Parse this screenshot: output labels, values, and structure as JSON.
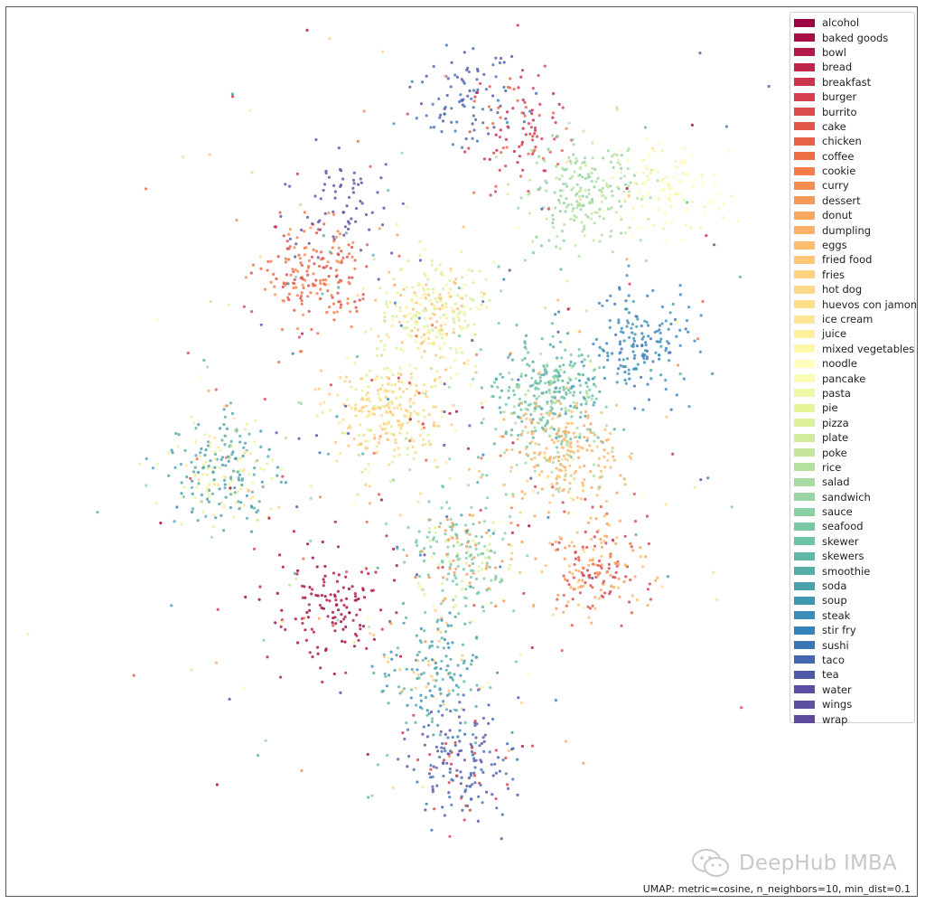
{
  "chart_data": {
    "type": "scatter",
    "title": "",
    "caption": "UMAP: metric=cosine, n_neighbors=10, min_dist=0.1",
    "grid": false,
    "legend_position": "top-right",
    "categories": [
      "alcohol",
      "baked goods",
      "bowl",
      "bread",
      "breakfast",
      "burger",
      "burrito",
      "cake",
      "chicken",
      "coffee",
      "cookie",
      "curry",
      "dessert",
      "donut",
      "dumpling",
      "eggs",
      "fried food",
      "fries",
      "hot dog",
      "huevos con jamon",
      "ice cream",
      "juice",
      "mixed vegetables",
      "noodle",
      "pancake",
      "pasta",
      "pie",
      "pizza",
      "plate",
      "poke",
      "rice",
      "salad",
      "sandwich",
      "sauce",
      "seafood",
      "skewer",
      "skewers",
      "smoothie",
      "soda",
      "soup",
      "steak",
      "stir fry",
      "sushi",
      "taco",
      "tea",
      "water",
      "wings",
      "wrap"
    ],
    "colors": [
      "#9e0142",
      "#a80d45",
      "#b41947",
      "#c0264a",
      "#cc334c",
      "#d53e4f",
      "#db4a4c",
      "#e15649",
      "#e76246",
      "#ed6e43",
      "#f47d4a",
      "#f68c50",
      "#f89a57",
      "#faa85e",
      "#fcb266",
      "#fdbd6f",
      "#fdc777",
      "#fdd281",
      "#fed98a",
      "#fee08b",
      "#fee695",
      "#fff0a0",
      "#fff7aa",
      "#ffffbf",
      "#f8fcb4",
      "#eff8a6",
      "#e6f598",
      "#dcf09a",
      "#d2ec9b",
      "#c5e69c",
      "#b6e0a0",
      "#a8dba4",
      "#99d5a4",
      "#8bcfa4",
      "#7cc8a5",
      "#6ec3a5",
      "#62b8a7",
      "#56adaa",
      "#4aa2ad",
      "#3f97b0",
      "#3a8cb9",
      "#3682ba",
      "#3d74b4",
      "#4566ae",
      "#4e59a8",
      "#5b4ea2",
      "#5e4fa2",
      "#5d4a9e"
    ],
    "clusters": [
      {
        "cx": 0.12,
        "cy": 0.86,
        "n": 90,
        "cats": [
          "tea",
          "taco",
          "sushi",
          "water"
        ]
      },
      {
        "cx": 0.31,
        "cy": 0.78,
        "n": 90,
        "cats": [
          "burger",
          "breakfast",
          "bread",
          "chicken"
        ]
      },
      {
        "cx": 0.52,
        "cy": 0.62,
        "n": 220,
        "cats": [
          "salad",
          "sandwich",
          "sauce",
          "rice",
          "poke"
        ]
      },
      {
        "cx": 0.78,
        "cy": 0.62,
        "n": 110,
        "cats": [
          "juice",
          "mixed vegetables",
          "pancake",
          "pasta",
          "noodle"
        ]
      },
      {
        "cx": -0.3,
        "cy": 0.6,
        "n": 70,
        "cats": [
          "wrap",
          "wings",
          "water"
        ]
      },
      {
        "cx": -0.4,
        "cy": 0.4,
        "n": 180,
        "cats": [
          "coffee",
          "cookie",
          "chicken",
          "curry",
          "burrito"
        ]
      },
      {
        "cx": 0.0,
        "cy": 0.3,
        "n": 260,
        "cats": [
          "pie",
          "pizza",
          "plate",
          "ice cream",
          "juice",
          "eggs"
        ]
      },
      {
        "cx": 0.7,
        "cy": 0.22,
        "n": 170,
        "cats": [
          "steak",
          "stir fry",
          "sushi",
          "soup"
        ]
      },
      {
        "cx": 0.4,
        "cy": 0.1,
        "n": 300,
        "cats": [
          "seafood",
          "skewer",
          "skewers",
          "smoothie",
          "soda",
          "salad"
        ]
      },
      {
        "cx": -0.15,
        "cy": 0.05,
        "n": 240,
        "cats": [
          "fried food",
          "fries",
          "hot dog",
          "huevos con jamon",
          "pizza"
        ]
      },
      {
        "cx": -0.7,
        "cy": -0.1,
        "n": 230,
        "cats": [
          "smoothie",
          "soda",
          "soup",
          "pie",
          "ice cream"
        ]
      },
      {
        "cx": 0.45,
        "cy": -0.05,
        "n": 230,
        "cats": [
          "dumpling",
          "eggs",
          "donut",
          "fried food",
          "salad"
        ]
      },
      {
        "cx": 0.1,
        "cy": -0.3,
        "n": 210,
        "cats": [
          "skewer",
          "seafood",
          "sauce",
          "pizza",
          "dessert"
        ]
      },
      {
        "cx": 0.55,
        "cy": -0.35,
        "n": 190,
        "cats": [
          "burger",
          "burrito",
          "cake",
          "dessert",
          "donut",
          "eggs"
        ]
      },
      {
        "cx": -0.35,
        "cy": -0.45,
        "n": 130,
        "cats": [
          "alcohol",
          "baked goods",
          "bowl"
        ]
      },
      {
        "cx": 0.0,
        "cy": -0.62,
        "n": 170,
        "cats": [
          "skewers",
          "smoothie",
          "soda",
          "steak",
          "fried food"
        ]
      },
      {
        "cx": 0.12,
        "cy": -0.85,
        "n": 170,
        "cats": [
          "taco",
          "tea",
          "water",
          "sushi",
          "burger"
        ]
      }
    ],
    "scattered_points": 420
  },
  "watermark": {
    "text": "DeepHub IMBA",
    "icon": "wechat-logo-icon"
  }
}
